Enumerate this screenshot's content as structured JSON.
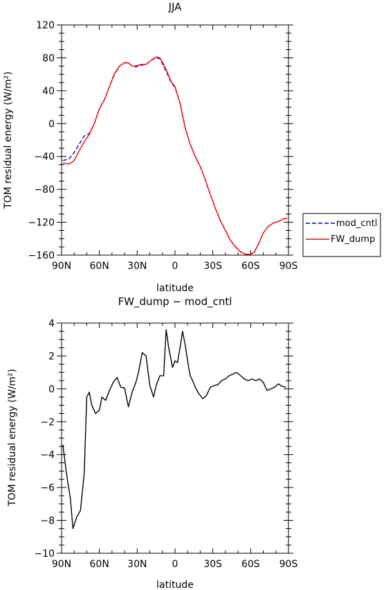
{
  "chart_data": [
    {
      "type": "line",
      "title": "JJA",
      "xlabel": "latitude",
      "ylabel": "TOM residual energy (W/m²)",
      "xlim": [
        90,
        -90
      ],
      "ylim": [
        -160,
        120
      ],
      "xticks": [
        90,
        60,
        30,
        0,
        -30,
        -60,
        -90
      ],
      "xtick_labels": [
        "90N",
        "60N",
        "30N",
        "0",
        "30S",
        "60S",
        "90S"
      ],
      "yticks": [
        120,
        80,
        40,
        0,
        -40,
        -80,
        -120,
        -160
      ],
      "ytick_labels": [
        "120",
        "80",
        "40",
        "0",
        "−40",
        "−80",
        "−120",
        "−160"
      ],
      "legend": "right",
      "series": [
        {
          "name": "mod_cntl",
          "color": "#0000cc",
          "dash": "dashed",
          "x": [
            89,
            84,
            80,
            76,
            72,
            68,
            64,
            60,
            56,
            52,
            48,
            44,
            40,
            37,
            34,
            31,
            27,
            23,
            19,
            15,
            12,
            9,
            6,
            3,
            0,
            -4,
            -8,
            -12,
            -16,
            -20,
            -24,
            -28,
            -32,
            -36,
            -40,
            -44,
            -48,
            -52,
            -56,
            -60,
            -63,
            -66,
            -70,
            -74,
            -78,
            -82,
            -86,
            -89
          ],
          "y": [
            -45,
            -43,
            -35,
            -25,
            -15,
            -12,
            0,
            18,
            29,
            45,
            60,
            70,
            74,
            74,
            70,
            69,
            71,
            72,
            77,
            80,
            79,
            70,
            60,
            50,
            44,
            25,
            -5,
            -25,
            -40,
            -52,
            -68,
            -86,
            -103,
            -118,
            -130,
            -142,
            -150,
            -156,
            -159,
            -159,
            -156,
            -147,
            -133,
            -125,
            -121,
            -119,
            -116,
            -115
          ]
        },
        {
          "name": "FW_dump",
          "color": "#ff0000",
          "dash": "solid",
          "x": [
            89,
            84,
            80,
            76,
            72,
            68,
            64,
            60,
            56,
            52,
            48,
            44,
            40,
            37,
            34,
            31,
            27,
            23,
            19,
            15,
            12,
            9,
            6,
            3,
            0,
            -4,
            -8,
            -12,
            -16,
            -20,
            -24,
            -28,
            -32,
            -36,
            -40,
            -44,
            -48,
            -52,
            -56,
            -60,
            -63,
            -66,
            -70,
            -74,
            -78,
            -82,
            -86,
            -89
          ],
          "y": [
            -48,
            -49,
            -45,
            -33,
            -22,
            -13,
            0,
            18,
            29,
            45,
            61,
            70,
            74,
            74,
            70,
            70,
            72,
            72,
            77,
            81,
            80,
            72,
            62,
            51,
            45,
            25,
            -5,
            -25,
            -40,
            -52,
            -68,
            -86,
            -103,
            -118,
            -130,
            -142,
            -150,
            -156,
            -159,
            -159,
            -156,
            -147,
            -133,
            -125,
            -121,
            -119,
            -116,
            -115
          ]
        }
      ]
    },
    {
      "type": "line",
      "title": "FW_dump − mod_cntl",
      "xlabel": "latitude",
      "ylabel": "TOM residual energy (W/m²)",
      "xlim": [
        90,
        -90
      ],
      "ylim": [
        -10,
        4
      ],
      "xticks": [
        90,
        60,
        30,
        0,
        -30,
        -60,
        -90
      ],
      "xtick_labels": [
        "90N",
        "60N",
        "30N",
        "0",
        "30S",
        "60S",
        "90S"
      ],
      "yticks": [
        4,
        2,
        0,
        -2,
        -4,
        -6,
        -8,
        -10
      ],
      "ytick_labels": [
        "4",
        "2",
        "0",
        "−2",
        "−4",
        "−6",
        "−8",
        "−10"
      ],
      "series": [
        {
          "color": "#000000",
          "x": [
            89,
            86,
            83,
            81,
            78,
            75,
            72,
            70,
            68,
            66,
            63,
            60,
            58,
            55,
            52,
            49,
            46,
            43,
            40,
            37,
            34,
            31,
            29,
            26,
            23,
            20,
            17,
            15,
            12,
            9,
            7,
            5,
            2,
            0,
            -2,
            -4,
            -6,
            -8,
            -10,
            -12,
            -14,
            -16,
            -19,
            -22,
            -25,
            -28,
            -31,
            -34,
            -37,
            -40,
            -43,
            -46,
            -49,
            -52,
            -55,
            -58,
            -61,
            -64,
            -67,
            -70,
            -73,
            -76,
            -79,
            -82,
            -85,
            -88
          ],
          "y": [
            -3.4,
            -5.2,
            -6.7,
            -8.5,
            -7.8,
            -7.4,
            -5.1,
            -0.5,
            -0.2,
            -1.0,
            -1.5,
            -1.3,
            -0.5,
            -0.7,
            -0.1,
            0.4,
            0.7,
            0.1,
            0.05,
            -1.1,
            -0.2,
            0.4,
            1.0,
            2.2,
            2.0,
            0.2,
            -0.5,
            0.2,
            0.8,
            0.8,
            3.6,
            2.5,
            1.3,
            1.7,
            1.6,
            2.5,
            3.5,
            2.7,
            1.7,
            0.8,
            0.5,
            0.1,
            -0.3,
            -0.6,
            -0.4,
            0.1,
            0.2,
            0.25,
            0.5,
            0.6,
            0.8,
            0.9,
            1.0,
            0.8,
            0.6,
            0.5,
            0.6,
            0.5,
            0.6,
            0.4,
            -0.1,
            0.0,
            0.1,
            0.3,
            0.15,
            0.1
          ]
        }
      ]
    }
  ]
}
